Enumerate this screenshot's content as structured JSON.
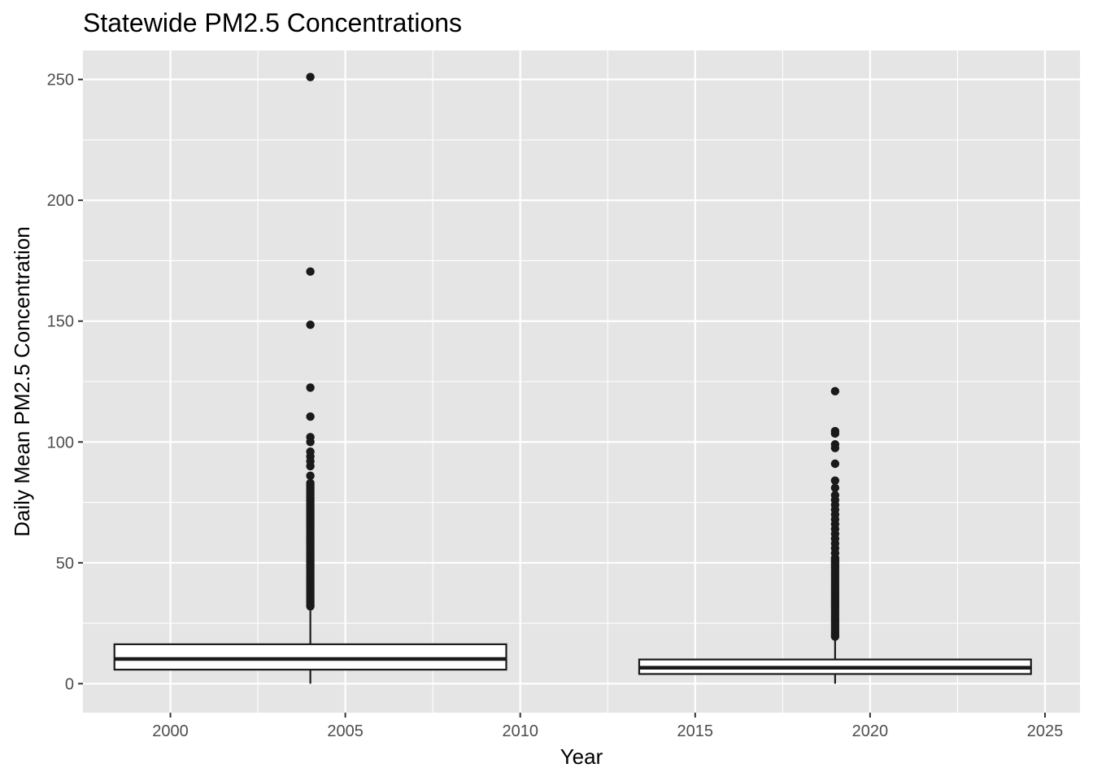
{
  "chart_data": {
    "type": "boxplot",
    "title": "Statewide PM2.5 Concentrations",
    "xlabel": "Year",
    "ylabel": "Daily Mean PM2.5 Concentration",
    "xlim": [
      1997.5,
      2026
    ],
    "ylim": [
      -12,
      262
    ],
    "x_ticks": [
      2000,
      2005,
      2010,
      2015,
      2020,
      2025
    ],
    "y_ticks": [
      0,
      50,
      100,
      150,
      200,
      250
    ],
    "grid": true,
    "legend": "none",
    "colors": {
      "panel_background": "#e5e5e5",
      "grid_line": "#ffffff",
      "box_fill": "#ffffff",
      "box_stroke": "#1a1a1a",
      "outlier": "#1a1a1a",
      "tick_text": "#4d4d4d"
    },
    "boxes": [
      {
        "x": 2004,
        "x_range": [
          1998.4,
          2009.6
        ],
        "whisker_low": 0,
        "q1": 5.8,
        "median": 10.2,
        "q3": 16.3,
        "whisker_high": 31.9,
        "outliers": [
          32,
          33,
          34,
          35,
          36,
          37,
          38,
          39,
          40,
          41,
          42,
          43,
          44,
          45,
          46,
          47,
          48,
          49,
          50,
          51,
          52,
          53,
          54,
          55,
          56,
          57,
          58,
          59,
          60,
          61,
          62,
          63,
          64,
          65,
          66,
          67,
          68,
          69,
          70,
          71,
          72,
          73,
          74,
          75,
          76,
          77,
          78,
          79,
          80,
          81,
          82,
          83,
          86,
          90,
          92,
          94,
          96,
          100,
          102,
          110.5,
          122.5,
          148.5,
          170.5,
          251
        ]
      },
      {
        "x": 2019,
        "x_range": [
          2013.4,
          2024.6
        ],
        "whisker_low": 0,
        "q1": 4,
        "median": 6.6,
        "q3": 10,
        "whisker_high": 19,
        "outliers": [
          19.5,
          20,
          21,
          22,
          23,
          24,
          25,
          26,
          27,
          28,
          29,
          30,
          31,
          32,
          33,
          34,
          35,
          36,
          37,
          38,
          39,
          40,
          41,
          42,
          43,
          44,
          45,
          46,
          47,
          48,
          49,
          50,
          51,
          52,
          54,
          56,
          58,
          60,
          62,
          64,
          66,
          68,
          70,
          72,
          74,
          76,
          78,
          81,
          84,
          91,
          97.5,
          99,
          103.5,
          104.5,
          121
        ]
      }
    ]
  }
}
